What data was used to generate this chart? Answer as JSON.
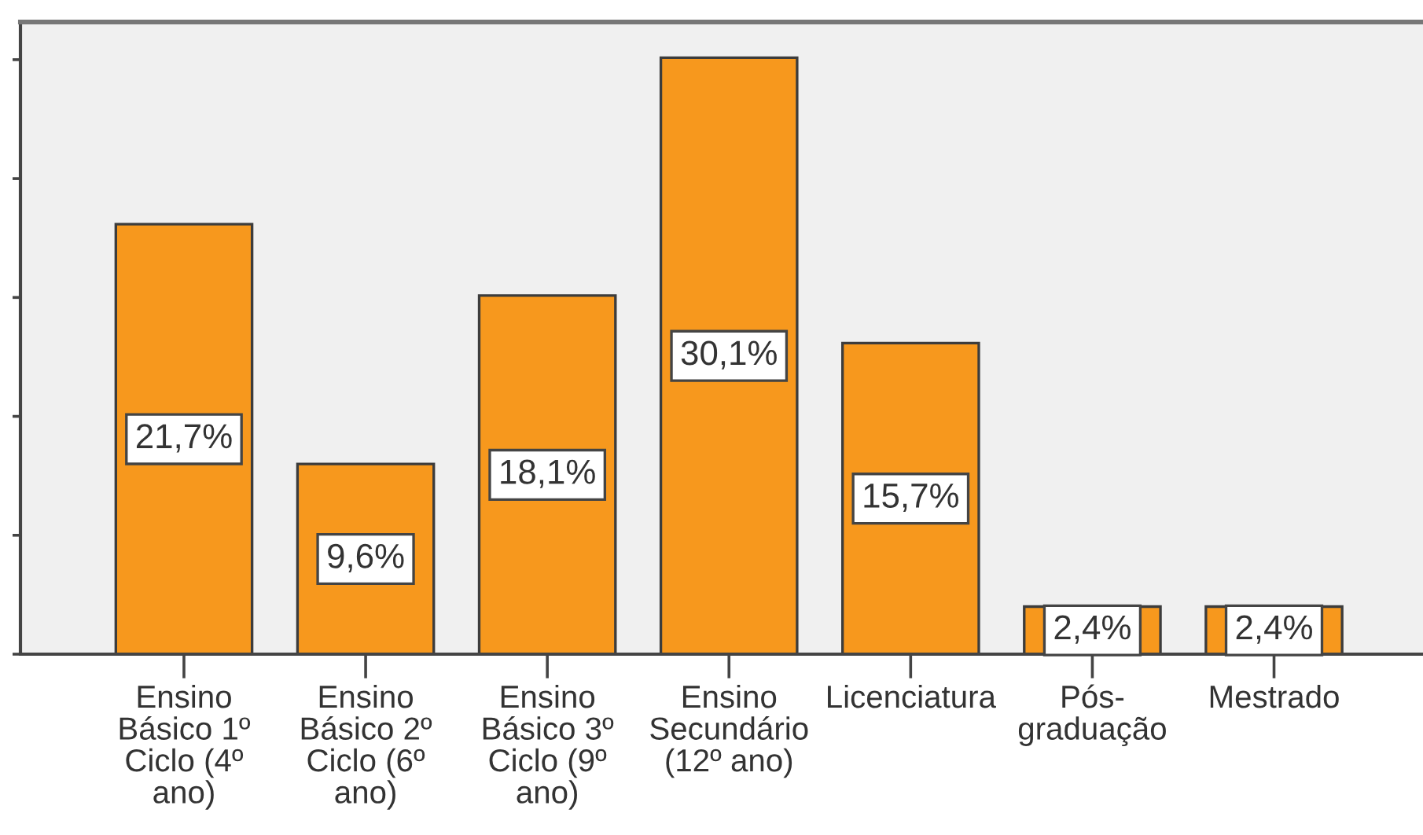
{
  "chart_data": {
    "type": "bar",
    "categories": [
      "Ensino\nBásico 1º\nCiclo (4º\nano)",
      "Ensino\nBásico 2º\nCiclo (6º\nano)",
      "Ensino\nBásico 3º\nCiclo (9º\nano)",
      "Ensino\nSecundário\n(12º ano)",
      "Licenciatura",
      "Pós-\ngraduação",
      "Mestrado"
    ],
    "values": [
      21.7,
      9.6,
      18.1,
      30.1,
      15.7,
      2.4,
      2.4
    ],
    "value_labels": [
      "21,7%",
      "9,6%",
      "18,1%",
      "30,1%",
      "15,7%",
      "2,4%",
      "2,4%"
    ],
    "color": "#f7981d",
    "ylim": [
      0,
      31.9
    ],
    "yticks": [
      {
        "value": 0,
        "label": null
      },
      {
        "value": 6,
        "label": null
      },
      {
        "value": 12,
        "label": null
      },
      {
        "value": 18,
        "label": null
      },
      {
        "value": 24,
        "label": null
      },
      {
        "value": 30,
        "label": null
      }
    ],
    "tick_labels": "x"
  }
}
